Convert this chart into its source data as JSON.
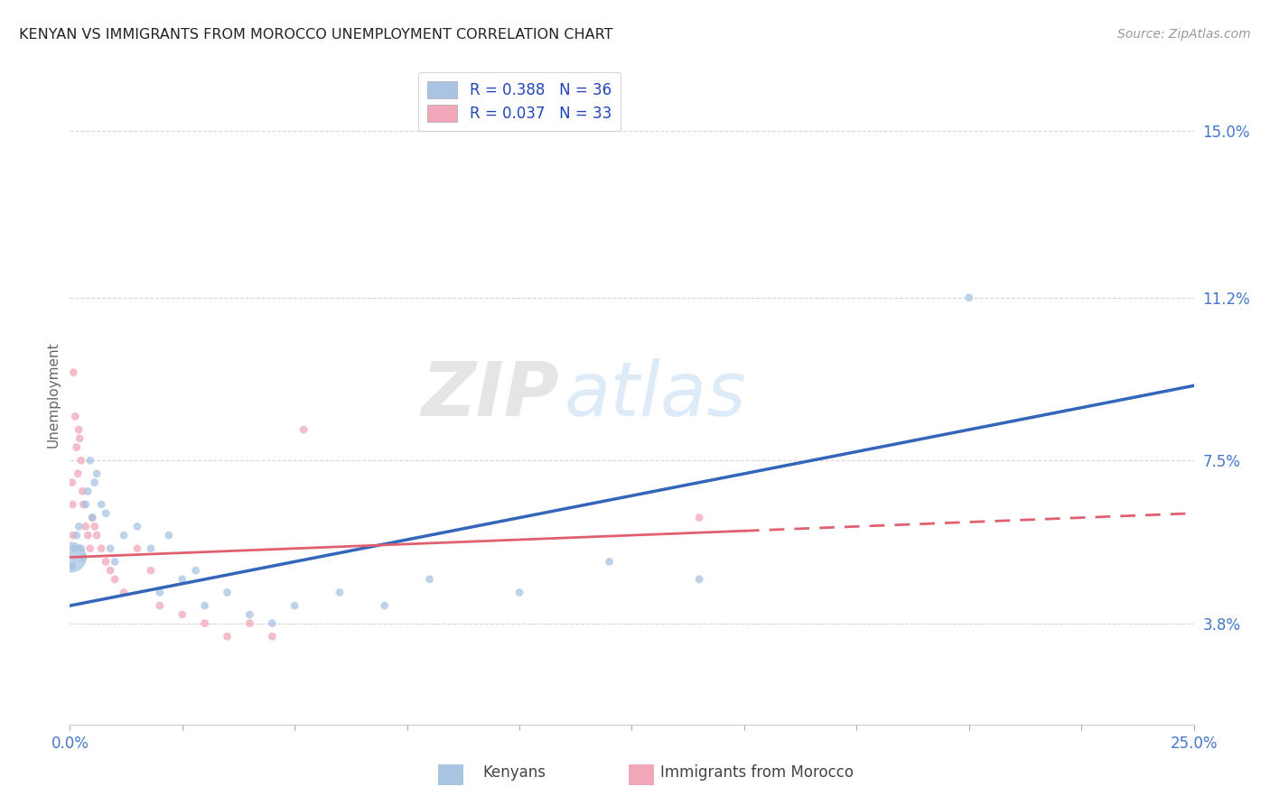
{
  "title": "KENYAN VS IMMIGRANTS FROM MOROCCO UNEMPLOYMENT CORRELATION CHART",
  "source": "Source: ZipAtlas.com",
  "ylabel": "Unemployment",
  "ytick_labels": [
    "3.8%",
    "7.5%",
    "11.2%",
    "15.0%"
  ],
  "ytick_values": [
    3.8,
    7.5,
    11.2,
    15.0
  ],
  "xlim": [
    0.0,
    25.0
  ],
  "ylim": [
    1.5,
    16.5
  ],
  "kenyan_color": "#a8c4e2",
  "morocco_color": "#f0a8b8",
  "kenyan_line_color": "#3366bb",
  "morocco_line_color": "#e06070",
  "watermark_zip": "ZIP",
  "watermark_atlas": "atlas",
  "background_color": "#ffffff",
  "kenyan_points": [
    [
      0.05,
      5.1
    ],
    [
      0.1,
      5.5
    ],
    [
      0.15,
      5.8
    ],
    [
      0.2,
      6.0
    ],
    [
      0.25,
      5.5
    ],
    [
      0.3,
      5.3
    ],
    [
      0.35,
      6.5
    ],
    [
      0.4,
      6.8
    ],
    [
      0.45,
      7.5
    ],
    [
      0.5,
      6.2
    ],
    [
      0.55,
      7.0
    ],
    [
      0.6,
      7.2
    ],
    [
      0.7,
      6.5
    ],
    [
      0.8,
      6.3
    ],
    [
      0.9,
      5.5
    ],
    [
      1.0,
      5.2
    ],
    [
      1.2,
      5.8
    ],
    [
      1.5,
      6.0
    ],
    [
      1.8,
      5.5
    ],
    [
      2.0,
      4.5
    ],
    [
      2.2,
      5.8
    ],
    [
      2.5,
      4.8
    ],
    [
      2.8,
      5.0
    ],
    [
      3.0,
      4.2
    ],
    [
      3.5,
      4.5
    ],
    [
      4.0,
      4.0
    ],
    [
      4.5,
      3.8
    ],
    [
      5.0,
      4.2
    ],
    [
      6.0,
      4.5
    ],
    [
      7.0,
      4.2
    ],
    [
      8.0,
      4.8
    ],
    [
      10.0,
      4.5
    ],
    [
      12.0,
      5.2
    ],
    [
      14.0,
      4.8
    ],
    [
      20.0,
      11.2
    ],
    [
      0.03,
      5.3
    ]
  ],
  "kenyan_sizes": [
    40,
    40,
    40,
    40,
    40,
    40,
    40,
    40,
    40,
    40,
    40,
    40,
    40,
    40,
    40,
    40,
    40,
    40,
    40,
    40,
    40,
    40,
    40,
    40,
    40,
    40,
    40,
    40,
    40,
    40,
    40,
    40,
    40,
    40,
    40,
    600
  ],
  "morocco_points": [
    [
      0.08,
      9.5
    ],
    [
      0.12,
      8.5
    ],
    [
      0.15,
      7.8
    ],
    [
      0.18,
      7.2
    ],
    [
      0.2,
      8.2
    ],
    [
      0.22,
      8.0
    ],
    [
      0.25,
      7.5
    ],
    [
      0.28,
      6.8
    ],
    [
      0.3,
      6.5
    ],
    [
      0.35,
      6.0
    ],
    [
      0.4,
      5.8
    ],
    [
      0.45,
      5.5
    ],
    [
      0.5,
      6.2
    ],
    [
      0.55,
      6.0
    ],
    [
      0.6,
      5.8
    ],
    [
      0.7,
      5.5
    ],
    [
      0.8,
      5.2
    ],
    [
      0.9,
      5.0
    ],
    [
      1.0,
      4.8
    ],
    [
      1.2,
      4.5
    ],
    [
      1.5,
      5.5
    ],
    [
      1.8,
      5.0
    ],
    [
      2.0,
      4.2
    ],
    [
      2.5,
      4.0
    ],
    [
      3.0,
      3.8
    ],
    [
      3.5,
      3.5
    ],
    [
      4.0,
      3.8
    ],
    [
      4.5,
      3.5
    ],
    [
      5.2,
      8.2
    ],
    [
      0.05,
      7.0
    ],
    [
      0.06,
      6.5
    ],
    [
      0.07,
      5.8
    ],
    [
      14.0,
      6.2
    ]
  ],
  "morocco_sizes": [
    40,
    40,
    40,
    40,
    40,
    40,
    40,
    40,
    40,
    40,
    40,
    40,
    40,
    40,
    40,
    40,
    40,
    40,
    40,
    40,
    40,
    40,
    40,
    40,
    40,
    40,
    40,
    40,
    40,
    40,
    40,
    40,
    40
  ],
  "kenyan_line": [
    [
      0,
      4.2
    ],
    [
      25,
      9.2
    ]
  ],
  "morocco_line": [
    [
      0,
      5.3
    ],
    [
      25,
      6.3
    ]
  ],
  "morocco_line_solid_end": 15,
  "xtick_positions": [
    0,
    2.5,
    5.0,
    7.5,
    10.0,
    12.5,
    15.0,
    17.5,
    20.0,
    22.5,
    25.0
  ]
}
